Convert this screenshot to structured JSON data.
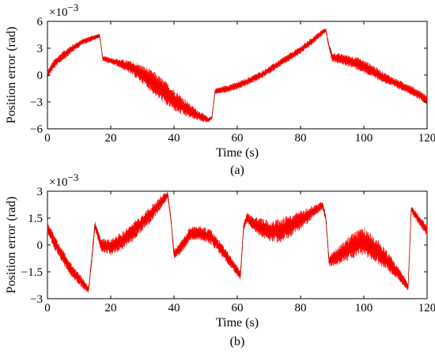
{
  "chart_data": [
    {
      "type": "line",
      "panel_caption": "(a)",
      "xlabel": "Time (s)",
      "ylabel": "Position error (rad)",
      "y_multiplier": "×10",
      "y_multiplier_exponent": "−3",
      "xlim": [
        0,
        120
      ],
      "ylim": [
        -6,
        6
      ],
      "xticks": [
        0,
        20,
        40,
        60,
        80,
        100,
        120
      ],
      "yticks": [
        6,
        3,
        0,
        -3,
        -6
      ],
      "series": [
        {
          "color": "#ff0000",
          "x": [
            0,
            2,
            5,
            8,
            11,
            14,
            16.5,
            17.5,
            18,
            22,
            26,
            30,
            34,
            38,
            42,
            46,
            50,
            51,
            52,
            53,
            56,
            60,
            64,
            68,
            72,
            76,
            80,
            84,
            87,
            88,
            89,
            90,
            94,
            98,
            102,
            106,
            110,
            114,
            118,
            120
          ],
          "y": [
            0.1,
            1.2,
            2.2,
            3.0,
            3.7,
            4.1,
            4.4,
            1.8,
            1.8,
            1.4,
            0.9,
            0.1,
            -1.0,
            -2.2,
            -3.3,
            -4.2,
            -4.9,
            -5.0,
            -4.7,
            -1.8,
            -1.6,
            -1.2,
            -0.6,
            0.1,
            1.0,
            1.9,
            2.8,
            3.9,
            4.8,
            5.0,
            3.2,
            2.0,
            1.7,
            1.3,
            0.6,
            -0.2,
            -0.9,
            -1.5,
            -2.3,
            -2.8
          ],
          "band": [
            0.4,
            0.5,
            0.5,
            0.4,
            0.3,
            0.3,
            0.2,
            0.2,
            0.3,
            0.4,
            0.7,
            1.0,
            1.3,
            1.3,
            1.1,
            0.7,
            0.4,
            0.2,
            0.2,
            0.3,
            0.4,
            0.4,
            0.4,
            0.4,
            0.4,
            0.4,
            0.4,
            0.4,
            0.3,
            0.2,
            0.3,
            0.5,
            0.6,
            0.7,
            0.7,
            0.6,
            0.5,
            0.5,
            0.5,
            0.5
          ]
        }
      ]
    },
    {
      "type": "line",
      "panel_caption": "(b)",
      "xlabel": "Time (s)",
      "ylabel": "Position error (rad)",
      "y_multiplier": "×10",
      "y_multiplier_exponent": "−3",
      "xlim": [
        0,
        120
      ],
      "ylim": [
        -3,
        3
      ],
      "xticks": [
        0,
        20,
        40,
        60,
        80,
        100,
        120
      ],
      "yticks": [
        3,
        1.5,
        0,
        -1.5,
        -3
      ],
      "series": [
        {
          "color": "#ff0000",
          "x": [
            0,
            2,
            5,
            8,
            11,
            13,
            14,
            15,
            17,
            20,
            24,
            28,
            32,
            36,
            38,
            39,
            40,
            42,
            45,
            48,
            52,
            56,
            59,
            61,
            62,
            63,
            66,
            70,
            74,
            78,
            82,
            85,
            87,
            88,
            89,
            92,
            96,
            100,
            104,
            108,
            111,
            113,
            114,
            115,
            117,
            120
          ],
          "y": [
            1.0,
            0.2,
            -0.7,
            -1.5,
            -2.1,
            -2.5,
            -0.8,
            1.1,
            0.0,
            -0.1,
            0.3,
            0.9,
            1.6,
            2.4,
            2.8,
            1.5,
            -0.5,
            -0.2,
            0.6,
            0.7,
            0.4,
            -0.5,
            -1.2,
            -1.7,
            1.0,
            1.5,
            1.1,
            0.8,
            0.8,
            1.2,
            1.6,
            2.0,
            2.2,
            1.5,
            -0.9,
            -0.6,
            -0.1,
            0.2,
            -0.3,
            -1.0,
            -1.6,
            -2.1,
            -2.4,
            2.0,
            1.5,
            0.8
          ],
          "band": [
            0.35,
            0.4,
            0.4,
            0.35,
            0.3,
            0.2,
            0.2,
            0.25,
            0.35,
            0.45,
            0.5,
            0.5,
            0.45,
            0.35,
            0.2,
            0.2,
            0.25,
            0.35,
            0.4,
            0.4,
            0.4,
            0.35,
            0.3,
            0.25,
            0.2,
            0.3,
            0.45,
            0.6,
            0.7,
            0.6,
            0.45,
            0.3,
            0.2,
            0.2,
            0.3,
            0.5,
            0.7,
            0.8,
            0.7,
            0.5,
            0.35,
            0.25,
            0.2,
            0.2,
            0.25,
            0.3
          ]
        }
      ]
    }
  ]
}
